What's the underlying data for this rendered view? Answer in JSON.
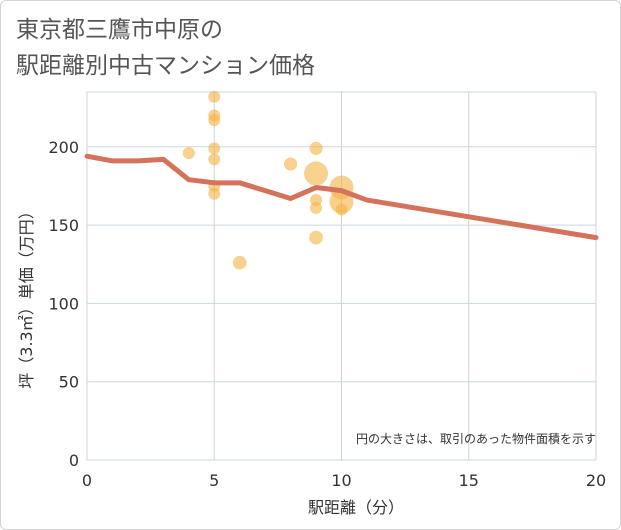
{
  "title": {
    "line1": "東京都三鷹市中原の",
    "line2": "駅距離別中古マンション価格"
  },
  "colors": {
    "line": "#d4725c",
    "bubble": "#f5b342",
    "grid": "#c9d6e0",
    "axis_text": "#333333"
  },
  "chart_data": {
    "type": "scatter",
    "xlabel": "駅距離（分）",
    "ylabel": "坪（3.3㎡）単価（万円）",
    "xlim": [
      0,
      20
    ],
    "ylim": [
      0,
      235
    ],
    "xticks": [
      0,
      5,
      10,
      15,
      20
    ],
    "yticks": [
      0,
      50,
      100,
      150,
      200
    ],
    "note": "円の大きさは、取引のあった物件面積を示す",
    "trend_line": {
      "x": [
        0,
        1,
        2,
        3,
        4,
        5,
        6,
        7,
        8,
        9,
        10,
        11,
        20
      ],
      "y": [
        194,
        191,
        191,
        192,
        179,
        177,
        177,
        172,
        167,
        174,
        172,
        166,
        142
      ]
    },
    "bubbles": [
      {
        "x": 4,
        "y": 196,
        "size": 1
      },
      {
        "x": 5,
        "y": 232,
        "size": 1
      },
      {
        "x": 5,
        "y": 220,
        "size": 1
      },
      {
        "x": 5,
        "y": 217,
        "size": 1
      },
      {
        "x": 5,
        "y": 199,
        "size": 1
      },
      {
        "x": 5,
        "y": 192,
        "size": 1
      },
      {
        "x": 5,
        "y": 175,
        "size": 1
      },
      {
        "x": 5,
        "y": 170,
        "size": 1
      },
      {
        "x": 6,
        "y": 126,
        "size": 1.3
      },
      {
        "x": 8,
        "y": 189,
        "size": 1.2
      },
      {
        "x": 9,
        "y": 199,
        "size": 1.2
      },
      {
        "x": 9,
        "y": 183,
        "size": 4
      },
      {
        "x": 9,
        "y": 166,
        "size": 1
      },
      {
        "x": 9,
        "y": 161,
        "size": 1
      },
      {
        "x": 9,
        "y": 142,
        "size": 1.3
      },
      {
        "x": 10,
        "y": 174,
        "size": 4
      },
      {
        "x": 10,
        "y": 165,
        "size": 4
      },
      {
        "x": 10,
        "y": 160,
        "size": 1
      }
    ]
  }
}
